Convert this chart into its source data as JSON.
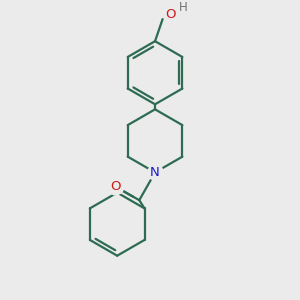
{
  "background_color": "#ebebeb",
  "bond_color": "#2d6b52",
  "n_color": "#1a1acc",
  "o_color": "#cc1a1a",
  "h_color": "#707070",
  "line_width": 1.6,
  "figsize": [
    3.0,
    3.0
  ],
  "dpi": 100,
  "xlim": [
    -1.6,
    1.8
  ],
  "ylim": [
    -2.2,
    2.4
  ]
}
